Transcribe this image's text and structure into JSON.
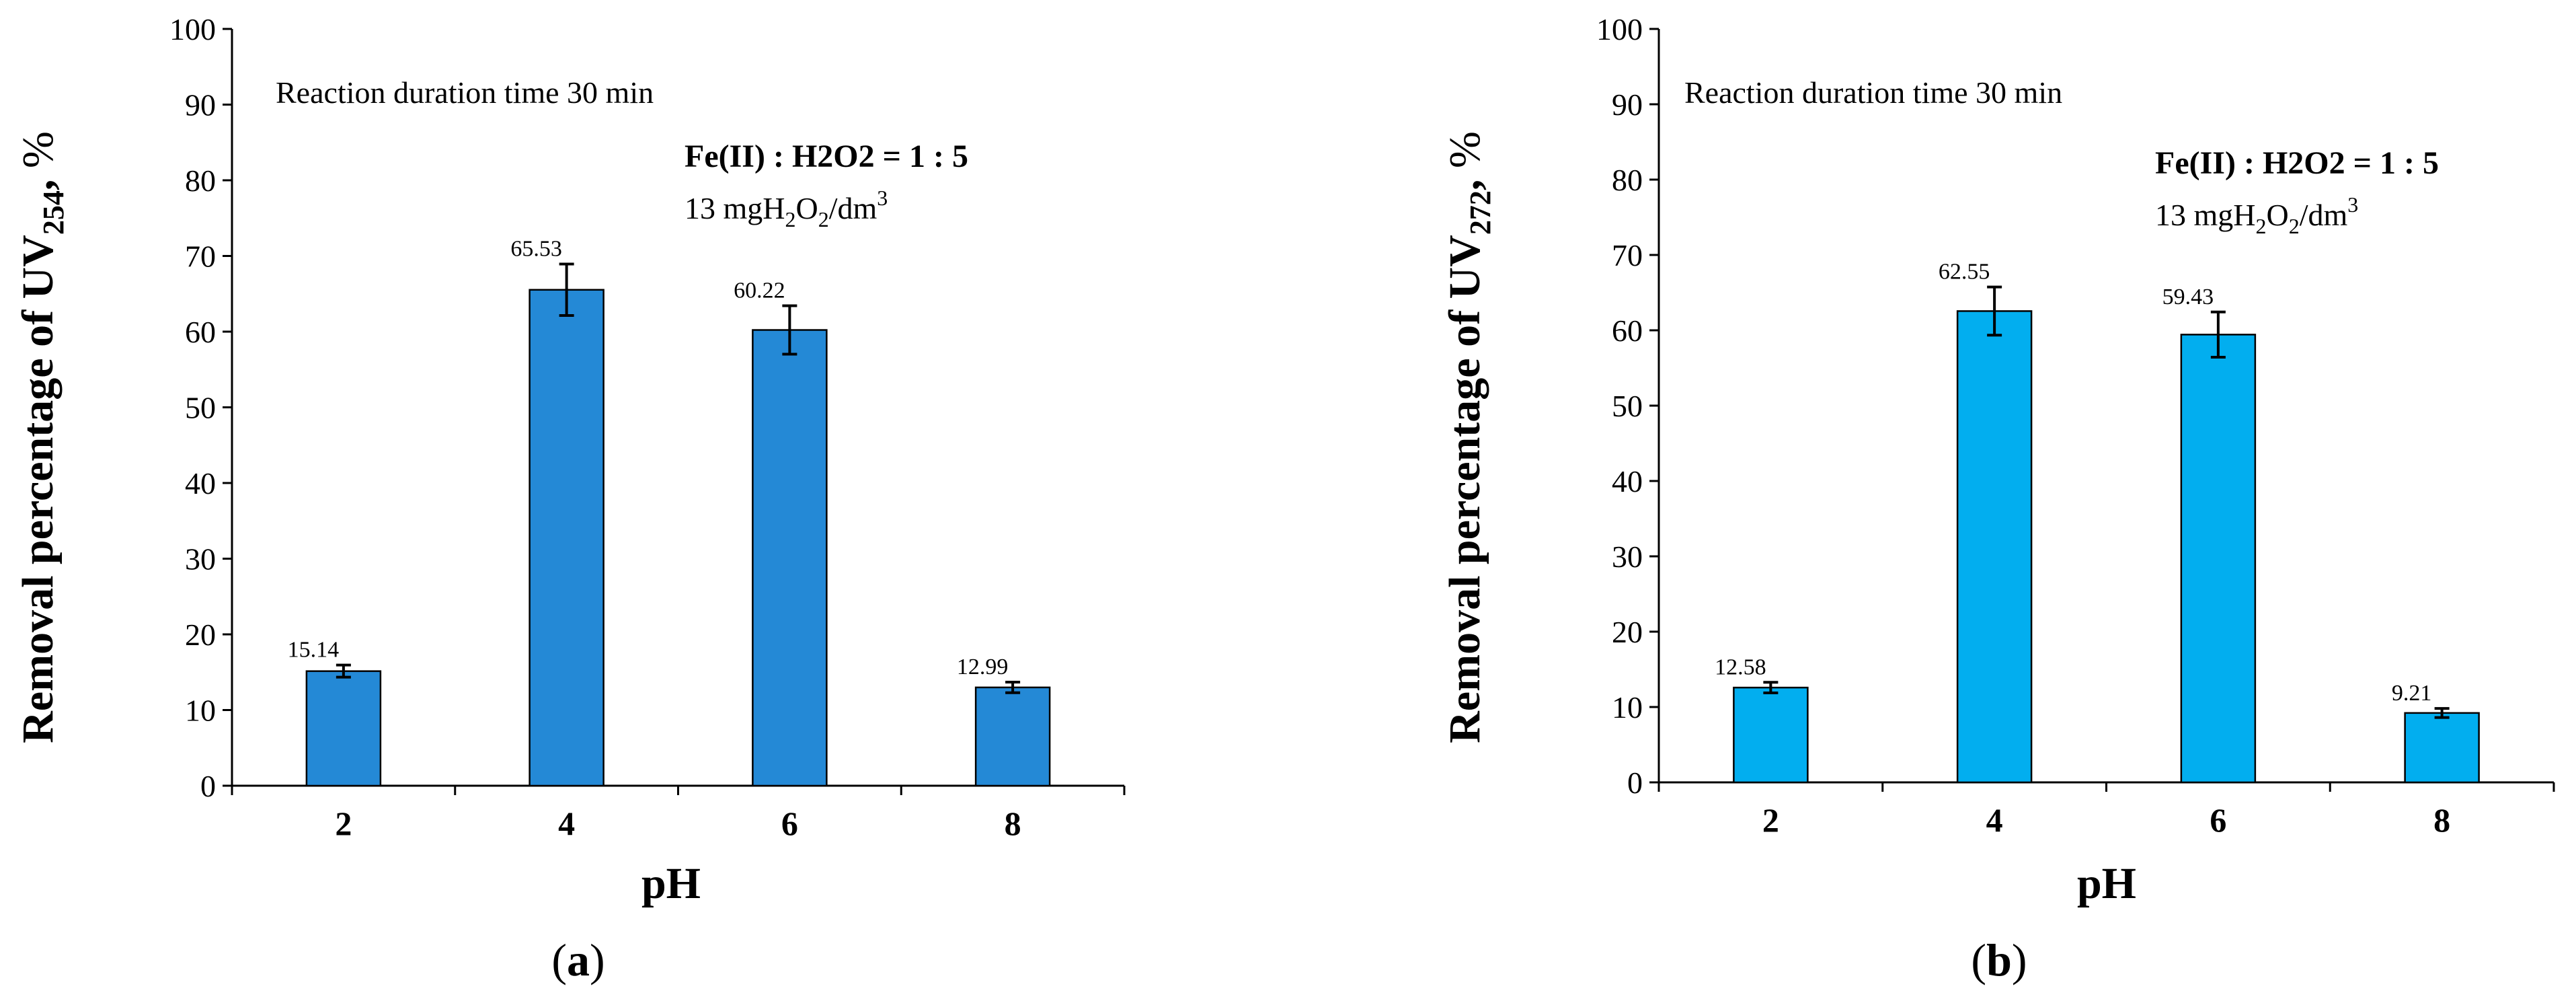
{
  "chart_data": [
    {
      "type": "bar",
      "panel_label": "a",
      "title": "",
      "categories": [
        "2",
        "4",
        "6",
        "8"
      ],
      "values": [
        15.14,
        65.53,
        60.22,
        12.99
      ],
      "value_labels": [
        "15.14",
        "65.53",
        "60.22",
        "12.99"
      ],
      "errors": [
        0.8,
        3.4,
        3.2,
        0.7
      ],
      "xlabel": "pH",
      "ylabel": "Removal percentage of  UV",
      "ylabel_sub": "254",
      "ylabel_unit": "%",
      "ylim": [
        0,
        100
      ],
      "ytick_step": 10,
      "ytick_labels": [
        "0",
        "10",
        "20",
        "30",
        "40",
        "50",
        "60",
        "70",
        "80",
        "90",
        "100"
      ],
      "bar_color": "#2489d6",
      "annotations": {
        "duration": "Reaction duration time 30 min",
        "ratio": "Fe(II) : H2O2 = 1 : 5",
        "dose_prefix": "13 mgH",
        "dose_sub1": "2",
        "dose_mid": "O",
        "dose_sub2": "2",
        "dose_unit": "/dm",
        "dose_sup": "3"
      }
    },
    {
      "type": "bar",
      "panel_label": "b",
      "title": "",
      "categories": [
        "2",
        "4",
        "6",
        "8"
      ],
      "values": [
        12.58,
        62.55,
        59.43,
        9.21
      ],
      "value_labels": [
        "12.58",
        "62.55",
        "59.43",
        "9.21"
      ],
      "errors": [
        0.7,
        3.2,
        3.0,
        0.6
      ],
      "xlabel": "pH",
      "ylabel": "Removal percentage of  UV",
      "ylabel_sub": "272",
      "ylabel_unit": "%",
      "ylim": [
        0,
        100
      ],
      "ytick_step": 10,
      "ytick_labels": [
        "0",
        "10",
        "20",
        "30",
        "40",
        "50",
        "60",
        "70",
        "80",
        "90",
        "100"
      ],
      "bar_color": "#02aeef",
      "annotations": {
        "duration": "Reaction duration time 30 min",
        "ratio": "Fe(II) : H2O2 = 1 : 5",
        "dose_prefix": "13 mgH",
        "dose_sub1": "2",
        "dose_mid": "O",
        "dose_sub2": "2",
        "dose_unit": "/dm",
        "dose_sup": "3"
      }
    }
  ]
}
